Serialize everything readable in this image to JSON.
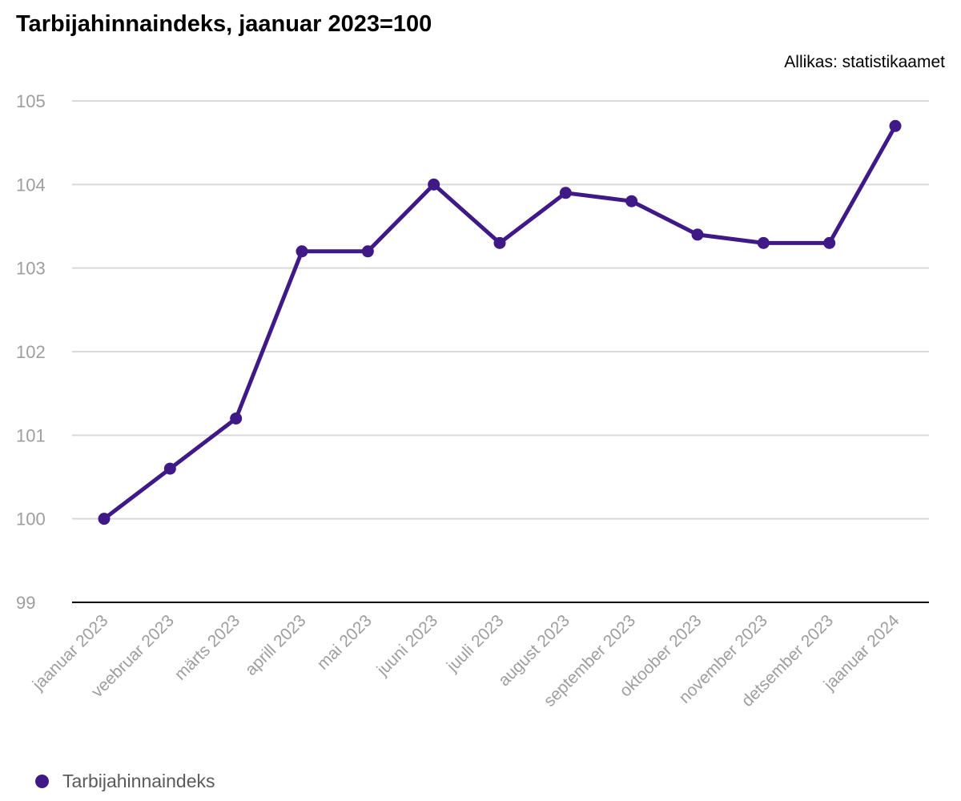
{
  "header": {
    "title": "Tarbijahinnaindeks, jaanuar 2023=100",
    "source": "Allikas: statistikaamet"
  },
  "chart_data": {
    "type": "line",
    "title": "Tarbijahinnaindeks, jaanuar 2023=100",
    "xlabel": "",
    "ylabel": "",
    "categories": [
      "jaanuar 2023",
      "veebruar 2023",
      "märts 2023",
      "aprill 2023",
      "mai 2023",
      "juuni 2023",
      "juuli 2023",
      "august 2023",
      "september 2023",
      "oktoober 2023",
      "november 2023",
      "detsember 2023",
      "jaanuar 2024"
    ],
    "series": [
      {
        "name": "Tarbijahinnaindeks",
        "values": [
          100.0,
          100.6,
          101.2,
          103.2,
          103.2,
          104.0,
          103.3,
          103.9,
          103.8,
          103.4,
          103.3,
          103.3,
          104.7
        ]
      }
    ],
    "ylim": [
      99,
      105
    ],
    "yticks": [
      99,
      100,
      101,
      102,
      103,
      104,
      105
    ],
    "grid": true,
    "legend_position": "bottom-left",
    "colors": {
      "series": "#3f1a87",
      "grid": "#d9d9d9",
      "axis": "#000000",
      "tick_label": "#9e9e9e"
    }
  },
  "legend": {
    "label": "Tarbijahinnaindeks",
    "color": "#3f1a87"
  }
}
